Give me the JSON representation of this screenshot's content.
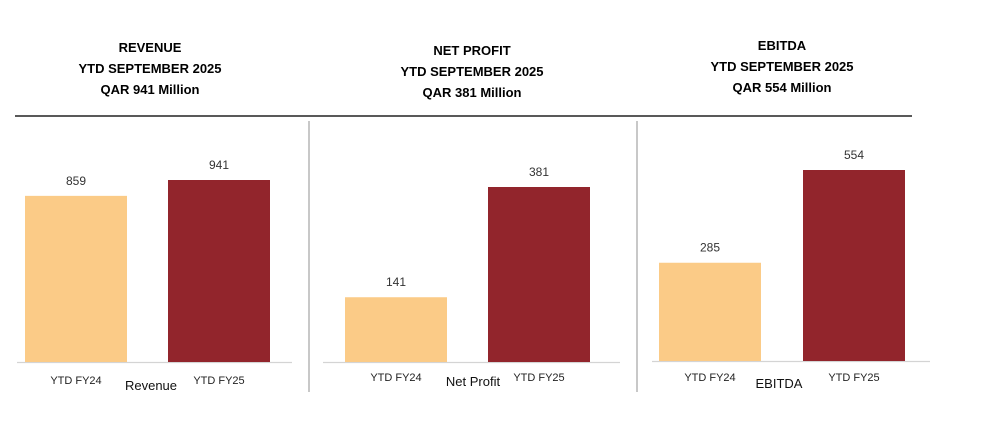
{
  "colors": {
    "fy24": "#FBCB87",
    "fy25": "#92252C",
    "rule": "#222222",
    "divider": "#b5b5b5",
    "axis": "#d4d4d4"
  },
  "chart_data": [
    {
      "type": "bar",
      "title_lines": [
        "REVENUE",
        "YTD SEPTEMBER 2025",
        "QAR 941 Million"
      ],
      "categories": [
        "YTD FY24",
        "YTD FY25"
      ],
      "values": [
        859,
        941
      ],
      "value_labels": [
        "859",
        "941"
      ],
      "xlabel": "Revenue",
      "ylabel": ""
    },
    {
      "type": "bar",
      "title_lines": [
        "NET PROFIT",
        "YTD SEPTEMBER 2025",
        "QAR 381 Million"
      ],
      "categories": [
        "YTD FY24",
        "YTD FY25"
      ],
      "values": [
        141,
        381
      ],
      "value_labels": [
        "141",
        "381"
      ],
      "xlabel": "Net Profit",
      "ylabel": ""
    },
    {
      "type": "bar",
      "title_lines": [
        "EBITDA",
        "YTD SEPTEMBER 2025",
        "QAR 554 Million"
      ],
      "categories": [
        "YTD FY24",
        "YTD FY25"
      ],
      "values": [
        285,
        554
      ],
      "value_labels": [
        "285",
        "554"
      ],
      "xlabel": "EBITDA",
      "ylabel": ""
    }
  ]
}
